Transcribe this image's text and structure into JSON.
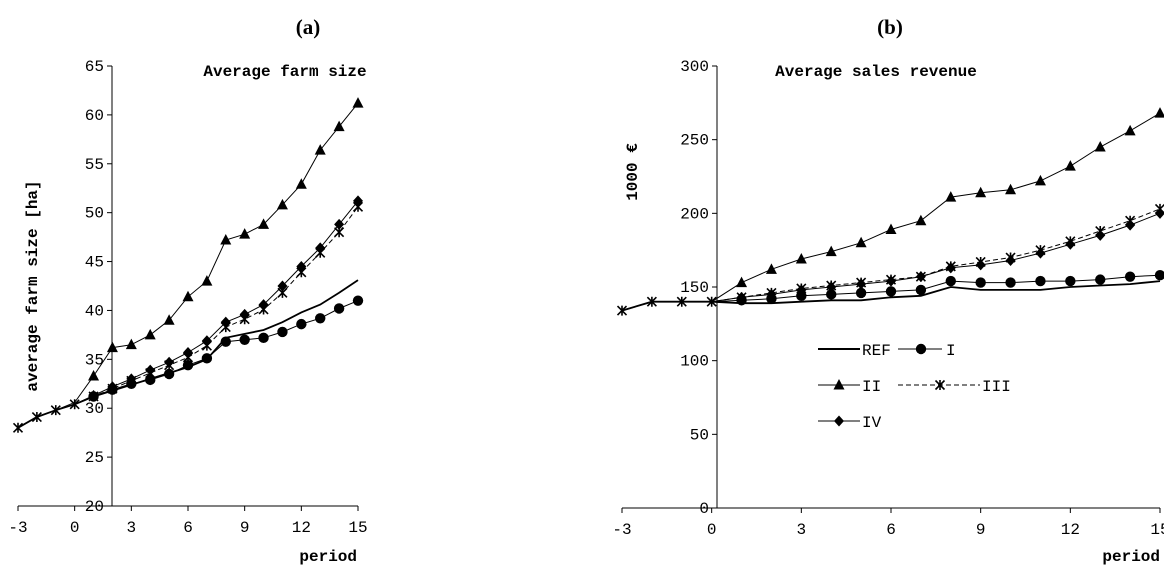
{
  "chart_data": [
    {
      "type": "line",
      "panel_label": "(a)",
      "title": "Average farm size",
      "xlabel": "period",
      "ylabel": "average farm size [ha]",
      "xlim": [
        -3,
        15
      ],
      "ylim": [
        20,
        65
      ],
      "x_ticks": [
        -3,
        0,
        3,
        6,
        9,
        12,
        15
      ],
      "y_ticks": [
        20,
        25,
        30,
        35,
        40,
        45,
        50,
        55,
        60,
        65
      ],
      "grid": false,
      "x": [
        -3,
        -2,
        -1,
        0,
        1,
        2,
        3,
        4,
        5,
        6,
        7,
        8,
        9,
        10,
        11,
        12,
        13,
        14,
        15
      ],
      "series": [
        {
          "name": "REF",
          "marker": "none",
          "values": [
            28.0,
            29.1,
            29.8,
            30.4,
            31.2,
            31.8,
            32.4,
            33.0,
            33.6,
            34.2,
            35.0,
            37.2,
            37.6,
            38.0,
            38.8,
            39.8,
            40.6,
            41.8,
            43.1
          ]
        },
        {
          "name": "I",
          "marker": "circle",
          "values": [
            28.0,
            29.1,
            29.8,
            30.4,
            31.2,
            31.9,
            32.5,
            32.9,
            33.5,
            34.4,
            35.1,
            36.8,
            37.0,
            37.2,
            37.8,
            38.6,
            39.2,
            40.2,
            41.0
          ]
        },
        {
          "name": "II",
          "marker": "triangle",
          "values": [
            28.0,
            29.1,
            29.8,
            30.6,
            33.3,
            36.2,
            36.5,
            37.5,
            39.0,
            41.4,
            43.0,
            47.2,
            47.8,
            48.8,
            50.8,
            52.9,
            56.4,
            58.8,
            61.2
          ]
        },
        {
          "name": "III",
          "marker": "star",
          "values": [
            28.0,
            29.1,
            29.8,
            30.4,
            31.2,
            32.0,
            32.8,
            33.6,
            34.4,
            35.2,
            36.4,
            38.3,
            39.1,
            40.1,
            41.8,
            43.9,
            45.9,
            48.0,
            50.6
          ]
        },
        {
          "name": "IV",
          "marker": "diamond",
          "values": [
            28.0,
            29.1,
            29.8,
            30.4,
            31.3,
            32.2,
            33.0,
            33.9,
            34.7,
            35.7,
            36.9,
            38.8,
            39.6,
            40.6,
            42.5,
            44.5,
            46.4,
            48.8,
            51.2
          ]
        }
      ]
    },
    {
      "type": "line",
      "panel_label": "(b)",
      "title": "Average sales revenue",
      "xlabel": "period",
      "ylabel": "1000 €",
      "xlim": [
        -3,
        15
      ],
      "ylim": [
        0,
        300
      ],
      "x_ticks": [
        -3,
        0,
        3,
        6,
        9,
        12,
        15
      ],
      "y_ticks": [
        0,
        50,
        100,
        150,
        200,
        250,
        300
      ],
      "grid": false,
      "legend_position": "center",
      "x": [
        -3,
        -2,
        -1,
        0,
        1,
        2,
        3,
        4,
        5,
        6,
        7,
        8,
        9,
        10,
        11,
        12,
        13,
        14,
        15
      ],
      "series": [
        {
          "name": "REF",
          "marker": "none",
          "values": [
            134,
            140,
            140,
            140,
            139,
            139,
            140,
            141,
            141,
            143,
            144,
            150,
            148,
            148,
            148,
            150,
            151,
            152,
            154
          ]
        },
        {
          "name": "I",
          "marker": "circle",
          "values": [
            134,
            140,
            140,
            140,
            141,
            142,
            144,
            145,
            146,
            147,
            148,
            154,
            153,
            153,
            154,
            154,
            155,
            157,
            158
          ]
        },
        {
          "name": "II",
          "marker": "triangle",
          "values": [
            134,
            140,
            140,
            140,
            153,
            162,
            169,
            174,
            180,
            189,
            195,
            211,
            214,
            216,
            222,
            232,
            245,
            256,
            268
          ]
        },
        {
          "name": "III",
          "marker": "star",
          "values": [
            134,
            140,
            140,
            140,
            143,
            146,
            149,
            151,
            153,
            155,
            157,
            164,
            167,
            170,
            175,
            181,
            188,
            195,
            203
          ]
        },
        {
          "name": "IV",
          "marker": "diamond",
          "values": [
            134,
            140,
            140,
            140,
            143,
            145,
            148,
            150,
            152,
            154,
            157,
            163,
            165,
            168,
            173,
            179,
            185,
            192,
            200
          ]
        }
      ]
    }
  ]
}
